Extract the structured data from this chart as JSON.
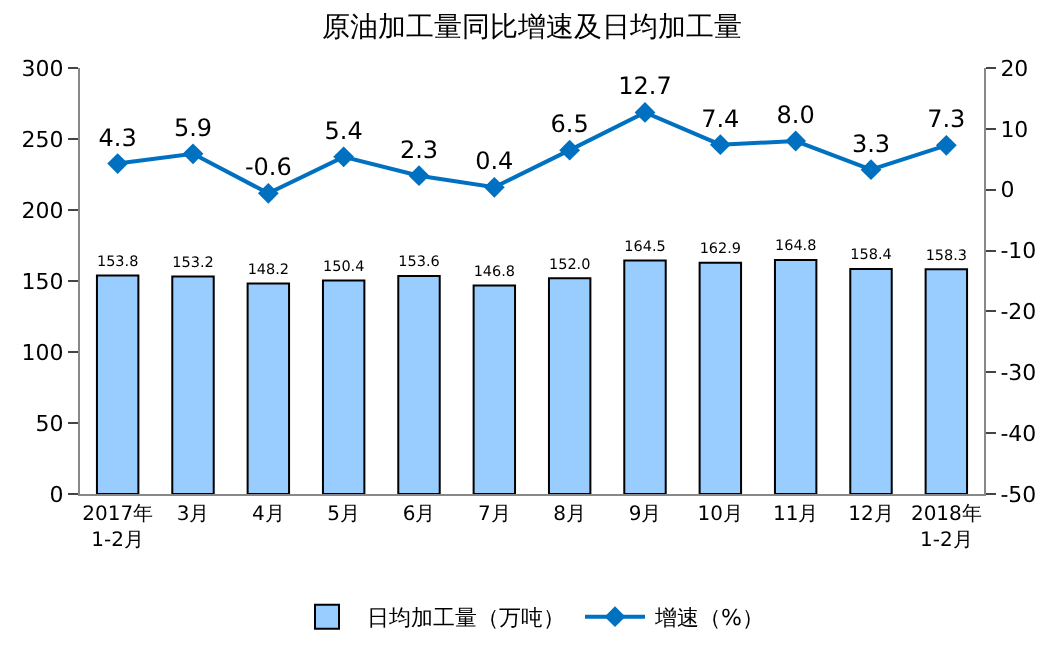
{
  "chart_data": {
    "type": "bar",
    "title": "原油加工量同比增速及日均加工量",
    "categories": [
      "2017年\n1-2月",
      "3月",
      "4月",
      "5月",
      "6月",
      "7月",
      "8月",
      "9月",
      "10月",
      "11月",
      "12月",
      "2018年\n1-2月"
    ],
    "series": [
      {
        "name": "日均加工量（万吨）",
        "color": "#99ccff",
        "values": [
          153.8,
          153.2,
          148.2,
          150.4,
          153.6,
          146.8,
          152.0,
          164.5,
          162.9,
          164.8,
          158.4,
          158.3
        ],
        "value_labels": [
          "153.8",
          "153.2",
          "148.2",
          "150.4",
          "153.6",
          "146.8",
          "152.0",
          "164.5",
          "162.9",
          "164.8",
          "158.4",
          "158.3"
        ]
      },
      {
        "name": "增速（%）",
        "type": "line",
        "axis": "y2",
        "color": "#0070c0",
        "marker": "diamond",
        "values": [
          4.3,
          5.9,
          -0.6,
          5.4,
          2.3,
          0.4,
          6.5,
          12.7,
          7.4,
          8.0,
          3.3,
          7.3
        ],
        "value_labels": [
          "4.3",
          "5.9",
          "-0.6",
          "5.4",
          "2.3",
          "0.4",
          "6.5",
          "12.7",
          "7.4",
          "8.0",
          "3.3",
          "7.3"
        ]
      }
    ],
    "ylim": [
      0,
      300
    ],
    "yticks": [
      0,
      50,
      100,
      150,
      200,
      250,
      300
    ],
    "y2lim": [
      -50,
      20
    ],
    "y2ticks": [
      -50,
      -40,
      -30,
      -20,
      -10,
      0,
      10,
      20
    ],
    "legend": "bottom"
  }
}
